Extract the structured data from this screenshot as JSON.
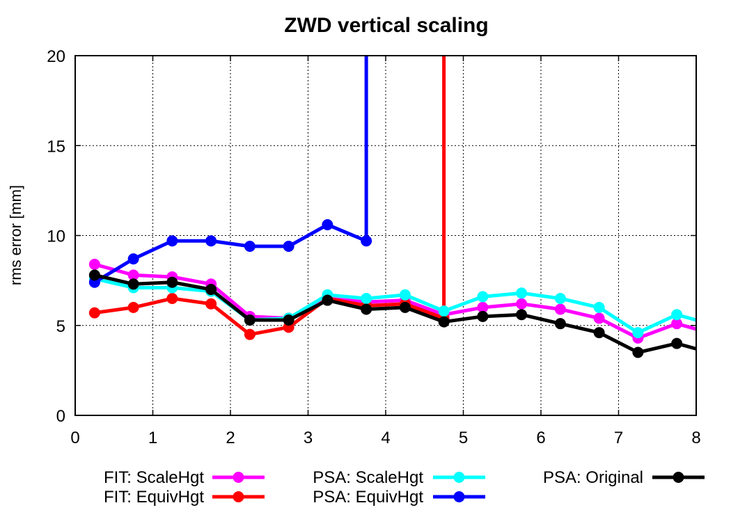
{
  "chart_data": {
    "type": "line",
    "title": "ZWD vertical scaling",
    "xlabel": "",
    "ylabel": "rms error [mm]",
    "xlim": [
      0,
      8
    ],
    "ylim": [
      0,
      20
    ],
    "xticks": [
      "0",
      "1",
      "2",
      "3",
      "4",
      "5",
      "6",
      "7",
      "8"
    ],
    "yticks": [
      "0",
      "5",
      "10",
      "15",
      "20"
    ],
    "grid": true,
    "legend_position": "bottom",
    "x": [
      0.25,
      0.75,
      1.25,
      1.75,
      2.25,
      2.75,
      3.25,
      3.75,
      4.25,
      4.75,
      5.25,
      5.75,
      6.25,
      6.75,
      7.25,
      7.75,
      8.0
    ],
    "series": [
      {
        "name": "FIT: ScaleHgt",
        "color": "#ff00ff",
        "values": [
          8.4,
          7.8,
          7.7,
          7.3,
          5.5,
          5.4,
          6.5,
          6.3,
          6.4,
          5.6,
          6.0,
          6.2,
          5.9,
          5.4,
          4.3,
          5.1,
          4.8
        ]
      },
      {
        "name": "FIT: EquivHgt",
        "color": "#ff0000",
        "values": [
          5.7,
          6.0,
          6.5,
          6.2,
          4.5,
          4.9,
          6.5,
          6.1,
          6.2,
          5.4,
          null,
          null,
          null,
          null,
          null,
          null,
          null
        ],
        "spike": {
          "x": 4.75,
          "from": 5.4,
          "to": 20
        }
      },
      {
        "name": "PSA: ScaleHgt",
        "color": "#00ffff",
        "values": [
          7.6,
          7.1,
          7.1,
          6.9,
          5.3,
          5.4,
          6.7,
          6.5,
          6.7,
          5.8,
          6.6,
          6.8,
          6.5,
          6.0,
          4.6,
          5.6,
          5.3
        ]
      },
      {
        "name": "PSA: EquivHgt",
        "color": "#0000ff",
        "values": [
          7.4,
          8.7,
          9.7,
          9.7,
          9.4,
          9.4,
          10.6,
          9.7,
          null,
          null,
          null,
          null,
          null,
          null,
          null,
          null,
          null
        ],
        "spike": {
          "x": 3.75,
          "from": 9.7,
          "to": 20
        }
      },
      {
        "name": "PSA: Original",
        "color": "#000000",
        "values": [
          7.8,
          7.3,
          7.4,
          7.0,
          5.3,
          5.3,
          6.4,
          5.9,
          6.0,
          5.2,
          5.5,
          5.6,
          5.1,
          4.6,
          3.5,
          4.0,
          3.7
        ]
      }
    ]
  }
}
